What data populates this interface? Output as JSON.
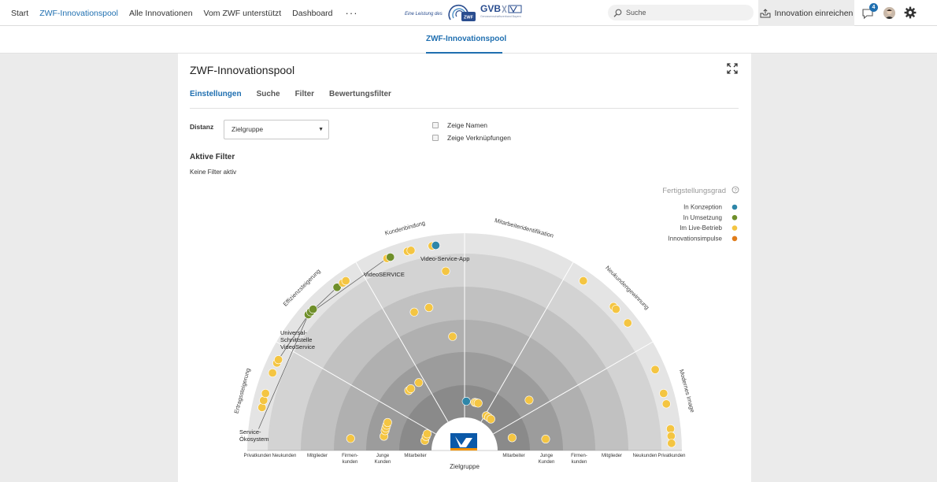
{
  "nav": {
    "items": [
      {
        "label": "Start",
        "active": false
      },
      {
        "label": "ZWF-Innovationspool",
        "active": true
      },
      {
        "label": "Alle Innovationen",
        "active": false
      },
      {
        "label": "Vom ZWF unterstützt",
        "active": false
      },
      {
        "label": "Dashboard",
        "active": false
      }
    ],
    "more_label": "···"
  },
  "logo": {
    "tagline": "Eine Leistung des",
    "gvb": "GVB",
    "gvb_sub": "Genossenschaftsverband Bayern"
  },
  "search": {
    "placeholder": "Suche",
    "value": ""
  },
  "header_button": {
    "label": "Innovation einreichen",
    "icon": "inbox-upload-icon"
  },
  "notifications": {
    "count": "4",
    "icon": "chat-bubble-icon"
  },
  "subheader": {
    "active_tab": "ZWF-Innovationspool"
  },
  "card": {
    "title": "ZWF-Innovationspool",
    "tabs": [
      {
        "label": "Einstellungen",
        "active": true
      },
      {
        "label": "Suche",
        "active": false
      },
      {
        "label": "Filter",
        "active": false
      },
      {
        "label": "Bewertungsfilter",
        "active": false
      }
    ],
    "distanz_label": "Distanz",
    "distanz_value": "Zielgruppe",
    "checkbox_names": "Zeige Namen",
    "checkbox_links": "Zeige Verknüpfungen",
    "active_filter_title": "Aktive Filter",
    "active_filter_none": "Keine Filter aktiv"
  },
  "chart_data": {
    "type": "radial-scatter",
    "legend_title": "Fertigstellungsgrad",
    "legend": [
      {
        "label": "In Konzeption",
        "color": "#2e86a8"
      },
      {
        "label": "In Umsetzung",
        "color": "#6f8f2a"
      },
      {
        "label": "Im Live-Betrieb",
        "color": "#f4c542"
      },
      {
        "label": "Innovationsimpulse",
        "color": "#e07c1a"
      }
    ],
    "categories": [
      "Ertragssteigerung",
      "Effizienzsteigerung",
      "Kundenbindung",
      "Mitarbeiteridentifikation",
      "Neukundengewinnung",
      "Modernes Image"
    ],
    "rings_left": [
      "Privatkunden",
      "Neukunden",
      "Mitglieder",
      "Firmen-\nkunden",
      "Junge\nKunden",
      "Mitarbeiter"
    ],
    "rings_right": [
      "Mitarbeiter",
      "Junge\nKunden",
      "Firmen-\nkunden",
      "Mitglieder",
      "Neukunden",
      "Privatkunden"
    ],
    "xlabel": "Zielgruppe",
    "labels": [
      "Video-Service-App",
      "VideoSERVICE",
      "Universal-\nSchnittstelle\nVideoService",
      "Service-\nÖkosystem"
    ],
    "points": [
      {
        "cat": 0,
        "ring": 0,
        "deg": 168,
        "status": "live"
      },
      {
        "cat": 0,
        "ring": 0,
        "deg": 166,
        "status": "live"
      },
      {
        "cat": 0,
        "ring": 0,
        "deg": 164,
        "status": "live"
      },
      {
        "cat": 0,
        "ring": 0,
        "deg": 158,
        "status": "live"
      },
      {
        "cat": 0,
        "ring": 0,
        "deg": 155,
        "status": "live"
      },
      {
        "cat": 0,
        "ring": 0,
        "deg": 154,
        "status": "live"
      },
      {
        "cat": 1,
        "ring": 0,
        "deg": 139,
        "status": "umsetzung"
      },
      {
        "cat": 1,
        "ring": 0,
        "deg": 138,
        "status": "umsetzung"
      },
      {
        "cat": 1,
        "ring": 0,
        "deg": 137,
        "status": "umsetzung"
      },
      {
        "cat": 1,
        "ring": 0,
        "deg": 128,
        "status": "umsetzung"
      },
      {
        "cat": 1,
        "ring": 0,
        "deg": 126,
        "status": "live"
      },
      {
        "cat": 1,
        "ring": 0,
        "deg": 125,
        "status": "live"
      },
      {
        "cat": 2,
        "ring": 0,
        "deg": 112,
        "status": "live"
      },
      {
        "cat": 2,
        "ring": 0,
        "deg": 111,
        "status": "umsetzung"
      },
      {
        "cat": 2,
        "ring": 0,
        "deg": 106,
        "status": "live"
      },
      {
        "cat": 2,
        "ring": 0,
        "deg": 105,
        "status": "live"
      },
      {
        "cat": 2,
        "ring": 0,
        "deg": 99,
        "status": "live"
      },
      {
        "cat": 2,
        "ring": 0,
        "deg": 98,
        "status": "konzeption"
      },
      {
        "cat": 4,
        "ring": 0,
        "deg": 55,
        "status": "live"
      },
      {
        "cat": 4,
        "ring": 0,
        "deg": 44,
        "status": "live"
      },
      {
        "cat": 4,
        "ring": 0,
        "deg": 43,
        "status": "live"
      },
      {
        "cat": 4,
        "ring": 0,
        "deg": 38,
        "status": "live"
      },
      {
        "cat": 5,
        "ring": 0,
        "deg": 23,
        "status": "live"
      },
      {
        "cat": 5,
        "ring": 0,
        "deg": 16,
        "status": "live"
      },
      {
        "cat": 5,
        "ring": 0,
        "deg": 13,
        "status": "live"
      },
      {
        "cat": 5,
        "ring": 0,
        "deg": 6,
        "status": "live"
      },
      {
        "cat": 5,
        "ring": 0,
        "deg": 4,
        "status": "live"
      },
      {
        "cat": 5,
        "ring": 0,
        "deg": 2,
        "status": "live"
      },
      {
        "cat": 2,
        "ring": 1,
        "deg": 96,
        "status": "live"
      },
      {
        "cat": 2,
        "ring": 2,
        "deg": 110,
        "status": "live"
      },
      {
        "cat": 2,
        "ring": 2,
        "deg": 104,
        "status": "live"
      },
      {
        "cat": 2,
        "ring": 3,
        "deg": 96,
        "status": "live"
      },
      {
        "cat": 1,
        "ring": 4,
        "deg": 133,
        "status": "live"
      },
      {
        "cat": 1,
        "ring": 4,
        "deg": 131,
        "status": "live"
      },
      {
        "cat": 1,
        "ring": 4,
        "deg": 124,
        "status": "live"
      },
      {
        "cat": 2,
        "ring": 5,
        "deg": 88,
        "status": "konzeption"
      },
      {
        "cat": 2,
        "ring": 5,
        "deg": 78,
        "status": "live"
      },
      {
        "cat": 2,
        "ring": 5,
        "deg": 76,
        "status": "live"
      },
      {
        "cat": 2,
        "ring": 5,
        "deg": 74,
        "status": "live"
      },
      {
        "cat": 4,
        "ring": 4,
        "deg": 38,
        "status": "live"
      },
      {
        "cat": 5,
        "ring": 4,
        "deg": 8,
        "status": "live"
      },
      {
        "cat": 5,
        "ring": 5,
        "deg": 15,
        "status": "live"
      },
      {
        "cat": 0,
        "ring": 4,
        "deg": 170,
        "status": "live"
      },
      {
        "cat": 0,
        "ring": 4,
        "deg": 166,
        "status": "live"
      },
      {
        "cat": 0,
        "ring": 4,
        "deg": 164,
        "status": "live"
      },
      {
        "cat": 0,
        "ring": 4,
        "deg": 162,
        "status": "live"
      },
      {
        "cat": 0,
        "ring": 4,
        "deg": 160,
        "status": "live"
      },
      {
        "cat": 0,
        "ring": 3,
        "deg": 174,
        "status": "live"
      },
      {
        "cat": 0,
        "ring": 6,
        "deg": 166,
        "status": "live"
      },
      {
        "cat": 0,
        "ring": 6,
        "deg": 160,
        "status": "live"
      },
      {
        "cat": 0,
        "ring": 6,
        "deg": 156,
        "status": "live"
      },
      {
        "cat": 5,
        "ring": 6,
        "deg": 58,
        "status": "live"
      },
      {
        "cat": 5,
        "ring": 6,
        "deg": 54,
        "status": "live"
      },
      {
        "cat": 5,
        "ring": 6,
        "deg": 50,
        "status": "live"
      }
    ]
  }
}
